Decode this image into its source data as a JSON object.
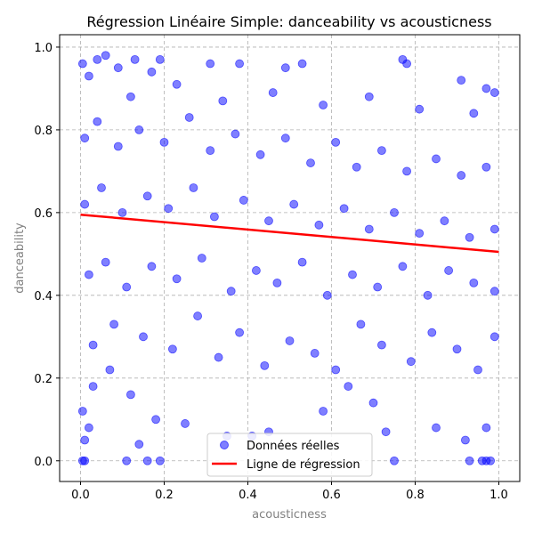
{
  "chart_data": {
    "type": "scatter",
    "title": "Régression Linéaire Simple: danceability vs acousticness",
    "xlabel": "acousticness",
    "ylabel": "danceability",
    "xlim": [
      -0.05,
      1.05
    ],
    "ylim": [
      -0.05,
      1.03
    ],
    "xticks": [
      0.0,
      0.2,
      0.4,
      0.6,
      0.8,
      1.0
    ],
    "xtick_labels": [
      "0.0",
      "0.2",
      "0.4",
      "0.6",
      "0.8",
      "1.0"
    ],
    "yticks": [
      0.0,
      0.2,
      0.4,
      0.6,
      0.8,
      1.0
    ],
    "ytick_labels": [
      "0.0",
      "0.2",
      "0.4",
      "0.6",
      "0.8",
      "1.0"
    ],
    "grid": true,
    "legend_position": "lower center",
    "series": [
      {
        "name": "Données réelles",
        "kind": "scatter",
        "color": "#0000ff",
        "alpha": 0.5,
        "points": [
          [
            0.005,
            0.96
          ],
          [
            0.02,
            0.93
          ],
          [
            0.04,
            0.97
          ],
          [
            0.06,
            0.98
          ],
          [
            0.09,
            0.95
          ],
          [
            0.13,
            0.97
          ],
          [
            0.17,
            0.94
          ],
          [
            0.19,
            0.97
          ],
          [
            0.31,
            0.96
          ],
          [
            0.38,
            0.96
          ],
          [
            0.49,
            0.95
          ],
          [
            0.53,
            0.96
          ],
          [
            0.77,
            0.97
          ],
          [
            0.78,
            0.96
          ],
          [
            0.91,
            0.92
          ],
          [
            0.97,
            0.9
          ],
          [
            0.99,
            0.89
          ],
          [
            0.005,
            0.0
          ],
          [
            0.01,
            0.0
          ],
          [
            0.11,
            0.0
          ],
          [
            0.16,
            0.0
          ],
          [
            0.19,
            0.0
          ],
          [
            0.75,
            0.0
          ],
          [
            0.93,
            0.0
          ],
          [
            0.96,
            0.0
          ],
          [
            0.97,
            0.0
          ],
          [
            0.98,
            0.0
          ],
          [
            0.01,
            0.05
          ],
          [
            0.02,
            0.08
          ],
          [
            0.005,
            0.12
          ],
          [
            0.03,
            0.18
          ],
          [
            0.07,
            0.22
          ],
          [
            0.12,
            0.16
          ],
          [
            0.14,
            0.04
          ],
          [
            0.18,
            0.1
          ],
          [
            0.25,
            0.09
          ],
          [
            0.35,
            0.06
          ],
          [
            0.41,
            0.06
          ],
          [
            0.45,
            0.07
          ],
          [
            0.58,
            0.12
          ],
          [
            0.64,
            0.18
          ],
          [
            0.7,
            0.14
          ],
          [
            0.73,
            0.07
          ],
          [
            0.85,
            0.08
          ],
          [
            0.92,
            0.05
          ],
          [
            0.97,
            0.08
          ],
          [
            0.03,
            0.28
          ],
          [
            0.08,
            0.33
          ],
          [
            0.15,
            0.3
          ],
          [
            0.22,
            0.27
          ],
          [
            0.28,
            0.35
          ],
          [
            0.33,
            0.25
          ],
          [
            0.38,
            0.31
          ],
          [
            0.44,
            0.23
          ],
          [
            0.5,
            0.29
          ],
          [
            0.56,
            0.26
          ],
          [
            0.61,
            0.22
          ],
          [
            0.67,
            0.33
          ],
          [
            0.72,
            0.28
          ],
          [
            0.79,
            0.24
          ],
          [
            0.84,
            0.31
          ],
          [
            0.9,
            0.27
          ],
          [
            0.95,
            0.22
          ],
          [
            0.99,
            0.3
          ],
          [
            0.02,
            0.45
          ],
          [
            0.06,
            0.48
          ],
          [
            0.11,
            0.42
          ],
          [
            0.17,
            0.47
          ],
          [
            0.23,
            0.44
          ],
          [
            0.29,
            0.49
          ],
          [
            0.36,
            0.41
          ],
          [
            0.42,
            0.46
          ],
          [
            0.47,
            0.43
          ],
          [
            0.53,
            0.48
          ],
          [
            0.59,
            0.4
          ],
          [
            0.65,
            0.45
          ],
          [
            0.71,
            0.42
          ],
          [
            0.77,
            0.47
          ],
          [
            0.83,
            0.4
          ],
          [
            0.88,
            0.46
          ],
          [
            0.94,
            0.43
          ],
          [
            0.99,
            0.41
          ],
          [
            0.01,
            0.62
          ],
          [
            0.05,
            0.66
          ],
          [
            0.1,
            0.6
          ],
          [
            0.16,
            0.64
          ],
          [
            0.21,
            0.61
          ],
          [
            0.27,
            0.66
          ],
          [
            0.32,
            0.59
          ],
          [
            0.39,
            0.63
          ],
          [
            0.45,
            0.58
          ],
          [
            0.51,
            0.62
          ],
          [
            0.57,
            0.57
          ],
          [
            0.63,
            0.61
          ],
          [
            0.69,
            0.56
          ],
          [
            0.75,
            0.6
          ],
          [
            0.81,
            0.55
          ],
          [
            0.87,
            0.58
          ],
          [
            0.93,
            0.54
          ],
          [
            0.99,
            0.56
          ],
          [
            0.01,
            0.78
          ],
          [
            0.04,
            0.82
          ],
          [
            0.09,
            0.76
          ],
          [
            0.14,
            0.8
          ],
          [
            0.2,
            0.77
          ],
          [
            0.26,
            0.83
          ],
          [
            0.31,
            0.75
          ],
          [
            0.37,
            0.79
          ],
          [
            0.43,
            0.74
          ],
          [
            0.49,
            0.78
          ],
          [
            0.55,
            0.72
          ],
          [
            0.61,
            0.77
          ],
          [
            0.66,
            0.71
          ],
          [
            0.72,
            0.75
          ],
          [
            0.78,
            0.7
          ],
          [
            0.85,
            0.73
          ],
          [
            0.91,
            0.69
          ],
          [
            0.97,
            0.71
          ],
          [
            0.12,
            0.88
          ],
          [
            0.23,
            0.91
          ],
          [
            0.34,
            0.87
          ],
          [
            0.46,
            0.89
          ],
          [
            0.58,
            0.86
          ],
          [
            0.69,
            0.88
          ],
          [
            0.81,
            0.85
          ],
          [
            0.94,
            0.84
          ]
        ]
      },
      {
        "name": "Ligne de régression",
        "kind": "line",
        "color": "#ff0000",
        "x": [
          0.0,
          1.0
        ],
        "y": [
          0.595,
          0.505
        ]
      }
    ]
  }
}
